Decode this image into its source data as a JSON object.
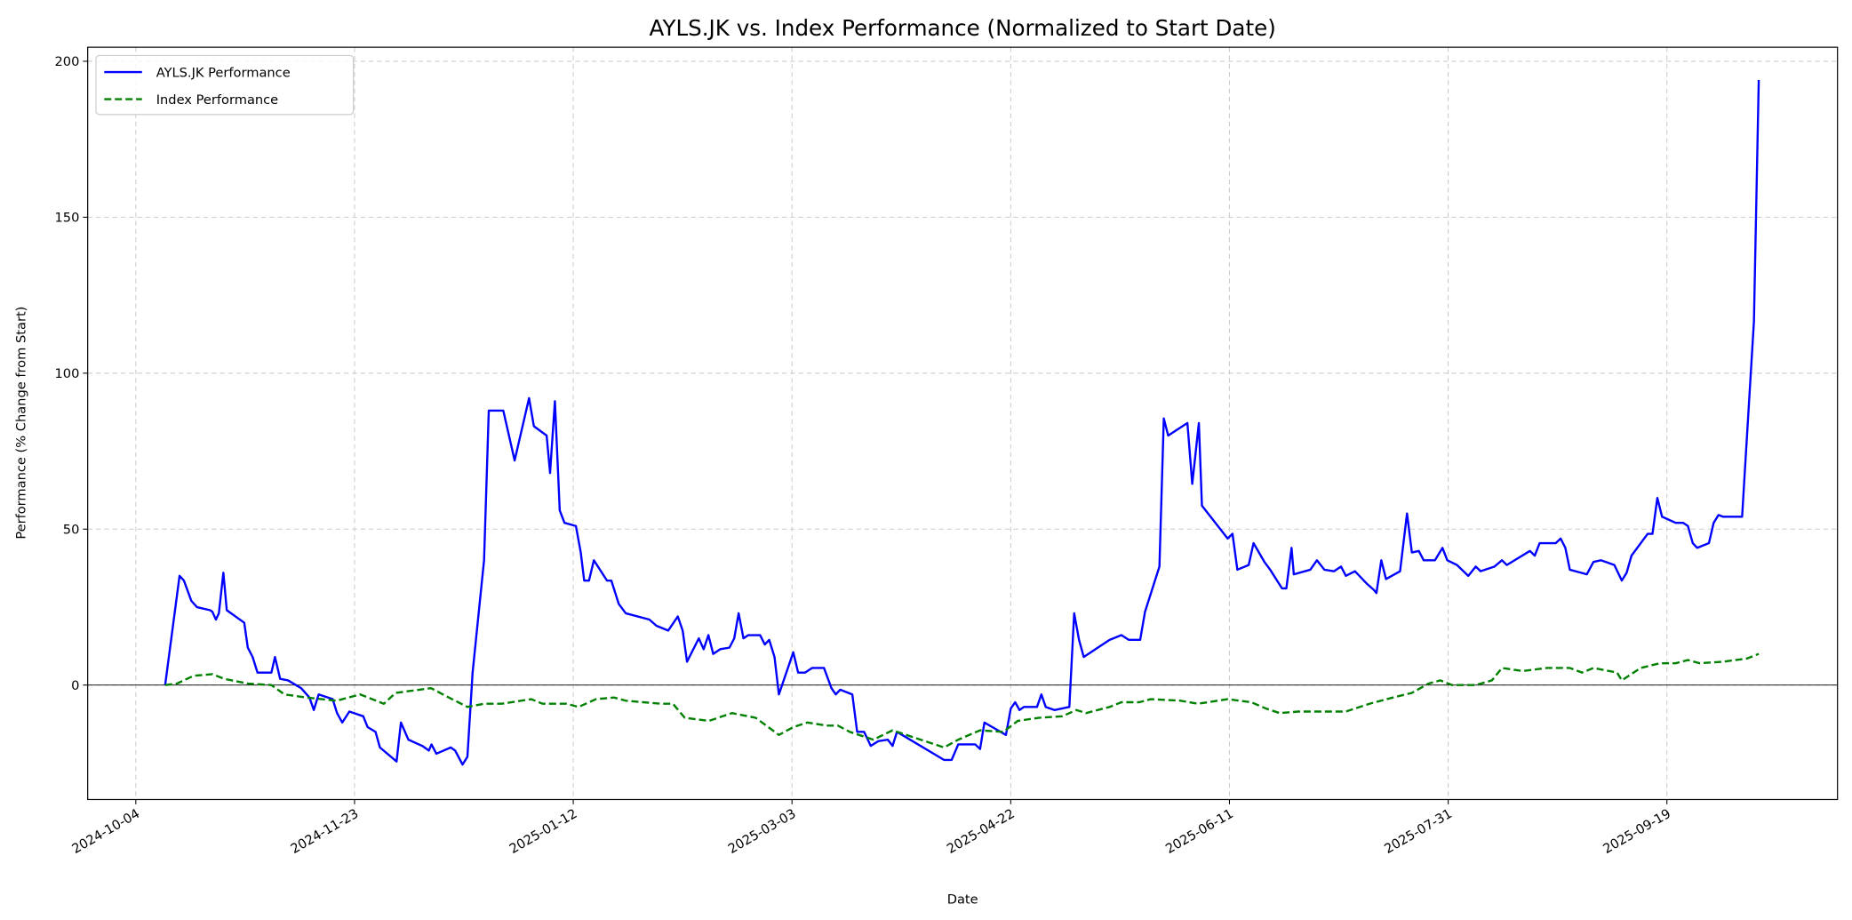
{
  "chart_data": {
    "type": "line",
    "title": "AYLS.JK vs. Index Performance (Normalized to Start Date)",
    "xlabel": "Date",
    "ylabel": "Performance (% Change from Start)",
    "x_unit": "days since 2024-10-04",
    "xlim": [
      -11,
      389
    ],
    "ylim": [
      -36.7,
      204.5
    ],
    "grid": true,
    "legend_position": "top-left",
    "zero_line": 0,
    "x_ticks": [
      {
        "value": 0,
        "label": "2024-10-04"
      },
      {
        "value": 50,
        "label": "2024-11-23"
      },
      {
        "value": 100,
        "label": "2025-01-12"
      },
      {
        "value": 150,
        "label": "2025-03-03"
      },
      {
        "value": 200,
        "label": "2025-04-22"
      },
      {
        "value": 250,
        "label": "2025-06-11"
      },
      {
        "value": 300,
        "label": "2025-07-31"
      },
      {
        "value": 350,
        "label": "2025-09-19"
      }
    ],
    "y_ticks": [
      {
        "value": 0,
        "label": "0"
      },
      {
        "value": 50,
        "label": "50"
      },
      {
        "value": 100,
        "label": "100"
      },
      {
        "value": 150,
        "label": "150"
      },
      {
        "value": 200,
        "label": "200"
      }
    ],
    "series": [
      {
        "name": "AYLS.JK Performance",
        "color": "#0000ff",
        "style": "solid",
        "points": [
          [
            6.7,
            0
          ],
          [
            10,
            35
          ],
          [
            11,
            33.5
          ],
          [
            12.7,
            27
          ],
          [
            14,
            25
          ],
          [
            17,
            24
          ],
          [
            17.5,
            23.5
          ],
          [
            18.3,
            21
          ],
          [
            19,
            23
          ],
          [
            20,
            36
          ],
          [
            20.8,
            24
          ],
          [
            24.8,
            20
          ],
          [
            25.6,
            12
          ],
          [
            26.7,
            9
          ],
          [
            27.8,
            4
          ],
          [
            31,
            4
          ],
          [
            31.8,
            9
          ],
          [
            33,
            2
          ],
          [
            34.8,
            1.5
          ],
          [
            37.8,
            -1
          ],
          [
            39.7,
            -4
          ],
          [
            40.7,
            -8
          ],
          [
            41.8,
            -3
          ],
          [
            45,
            -4.5
          ],
          [
            46,
            -9
          ],
          [
            47.2,
            -12
          ],
          [
            48.8,
            -8.5
          ],
          [
            52,
            -10
          ],
          [
            53,
            -13.5
          ],
          [
            54.8,
            -15
          ],
          [
            55.8,
            -20
          ],
          [
            59.6,
            -24.5
          ],
          [
            60.6,
            -12
          ],
          [
            62.3,
            -17.5
          ],
          [
            65.5,
            -19.5
          ],
          [
            67,
            -21
          ],
          [
            67.6,
            -19
          ],
          [
            68.7,
            -22
          ],
          [
            72,
            -20
          ],
          [
            73,
            -21
          ],
          [
            74.7,
            -25.5
          ],
          [
            75.8,
            -23
          ],
          [
            77,
            4
          ],
          [
            79.6,
            40
          ],
          [
            80.7,
            88
          ],
          [
            84,
            88
          ],
          [
            86.6,
            72
          ],
          [
            89.9,
            92
          ],
          [
            91,
            83
          ],
          [
            93.9,
            80
          ],
          [
            94.7,
            68
          ],
          [
            95.8,
            91
          ],
          [
            96.9,
            56
          ],
          [
            98,
            52
          ],
          [
            100.6,
            51
          ],
          [
            101.7,
            42.5
          ],
          [
            102.5,
            33.5
          ],
          [
            103.6,
            33.5
          ],
          [
            104.7,
            40
          ],
          [
            107.7,
            33.5
          ],
          [
            108.7,
            33.5
          ],
          [
            110.4,
            26
          ],
          [
            112,
            23
          ],
          [
            117.4,
            21
          ],
          [
            119,
            19
          ],
          [
            121.7,
            17.5
          ],
          [
            123.9,
            22
          ],
          [
            125,
            17.5
          ],
          [
            126,
            7.5
          ],
          [
            128.7,
            15
          ],
          [
            129.8,
            11.5
          ],
          [
            130.9,
            16
          ],
          [
            132,
            10
          ],
          [
            133.6,
            11.5
          ],
          [
            135.7,
            12
          ],
          [
            136.8,
            15
          ],
          [
            137.8,
            23
          ],
          [
            138.9,
            15
          ],
          [
            140,
            16
          ],
          [
            142.7,
            16
          ],
          [
            143.8,
            13
          ],
          [
            144.8,
            14.5
          ],
          [
            146,
            9
          ],
          [
            147,
            -3
          ],
          [
            150.3,
            10.5
          ],
          [
            151.4,
            4
          ],
          [
            153,
            4
          ],
          [
            154.6,
            5.5
          ],
          [
            157.3,
            5.5
          ],
          [
            159,
            -1
          ],
          [
            160,
            -3
          ],
          [
            161,
            -1.5
          ],
          [
            163.8,
            -3
          ],
          [
            164.9,
            -15
          ],
          [
            166.5,
            -15
          ],
          [
            168,
            -19.5
          ],
          [
            169.7,
            -18
          ],
          [
            171.9,
            -17.5
          ],
          [
            173,
            -19.5
          ],
          [
            174,
            -15
          ],
          [
            184.8,
            -24
          ],
          [
            186.5,
            -24
          ],
          [
            188,
            -19
          ],
          [
            191.9,
            -19
          ],
          [
            193,
            -20.5
          ],
          [
            194,
            -12
          ],
          [
            198.9,
            -16
          ],
          [
            200,
            -7.5
          ],
          [
            201,
            -5.5
          ],
          [
            202,
            -8
          ],
          [
            203,
            -7
          ],
          [
            206,
            -7
          ],
          [
            207,
            -3
          ],
          [
            208,
            -7
          ],
          [
            210,
            -8
          ],
          [
            213.4,
            -7
          ],
          [
            214.5,
            23
          ],
          [
            215.6,
            14.5
          ],
          [
            216.7,
            9
          ],
          [
            221,
            13
          ],
          [
            222.6,
            14.5
          ],
          [
            225.3,
            16
          ],
          [
            227,
            14.5
          ],
          [
            229.6,
            14.5
          ],
          [
            230.7,
            23.5
          ],
          [
            234,
            38
          ],
          [
            235,
            85.5
          ],
          [
            236,
            80
          ],
          [
            240.4,
            84
          ],
          [
            241.5,
            64.5
          ],
          [
            243,
            84
          ],
          [
            243.7,
            57.5
          ],
          [
            249.6,
            47
          ],
          [
            250.7,
            48.5
          ],
          [
            251.8,
            37
          ],
          [
            254.4,
            38.5
          ],
          [
            255.5,
            45.5
          ],
          [
            258,
            39.5
          ],
          [
            259.3,
            37
          ],
          [
            262,
            31
          ],
          [
            263,
            31
          ],
          [
            264.2,
            44
          ],
          [
            264.7,
            35.5
          ],
          [
            268.5,
            37
          ],
          [
            270,
            40
          ],
          [
            271.7,
            37
          ],
          [
            273.9,
            36.5
          ],
          [
            275.5,
            38
          ],
          [
            276.6,
            35
          ],
          [
            278.7,
            36.5
          ],
          [
            281.4,
            32.5
          ],
          [
            283,
            30.5
          ],
          [
            283.6,
            29.5
          ],
          [
            284.7,
            40
          ],
          [
            285.8,
            34
          ],
          [
            289,
            36.5
          ],
          [
            290.6,
            55
          ],
          [
            291.7,
            42.5
          ],
          [
            293.3,
            43
          ],
          [
            294.4,
            40
          ],
          [
            297,
            40
          ],
          [
            298.7,
            44
          ],
          [
            299.8,
            40
          ],
          [
            302,
            38.5
          ],
          [
            304.6,
            35
          ],
          [
            306.3,
            38
          ],
          [
            307.4,
            36.5
          ],
          [
            310.6,
            38
          ],
          [
            312.3,
            40
          ],
          [
            313.4,
            38.5
          ],
          [
            318.7,
            43
          ],
          [
            319.8,
            41.5
          ],
          [
            320.9,
            45.5
          ],
          [
            324.6,
            45.5
          ],
          [
            325.7,
            47
          ],
          [
            326.8,
            44
          ],
          [
            327.8,
            37
          ],
          [
            331.7,
            35.5
          ],
          [
            333.2,
            39.5
          ],
          [
            334.9,
            40
          ],
          [
            338,
            38.5
          ],
          [
            339.7,
            33.5
          ],
          [
            340.8,
            36
          ],
          [
            341.9,
            41.5
          ],
          [
            345.6,
            48.5
          ],
          [
            346.7,
            48.5
          ],
          [
            347.8,
            60
          ],
          [
            348.9,
            54
          ],
          [
            352,
            52
          ],
          [
            353.7,
            52
          ],
          [
            354.8,
            51
          ],
          [
            355.9,
            45.5
          ],
          [
            356.9,
            44
          ],
          [
            359.6,
            45.5
          ],
          [
            360.7,
            52
          ],
          [
            361.8,
            54.5
          ],
          [
            362.8,
            54
          ],
          [
            367.2,
            54
          ],
          [
            367.7,
            66
          ],
          [
            369.9,
            116.5
          ],
          [
            371,
            194
          ]
        ]
      },
      {
        "name": "Index Performance",
        "color": "#008000",
        "style": "dashed",
        "points": [
          [
            6.7,
            0
          ],
          [
            9.4,
            0.5
          ],
          [
            13.2,
            3
          ],
          [
            17.5,
            3.5
          ],
          [
            20.2,
            2
          ],
          [
            25.6,
            0.5
          ],
          [
            31,
            0
          ],
          [
            34,
            -3
          ],
          [
            39,
            -4
          ],
          [
            45.9,
            -5
          ],
          [
            51.3,
            -3
          ],
          [
            56.7,
            -6
          ],
          [
            59.4,
            -2.5
          ],
          [
            67.5,
            -1
          ],
          [
            70.2,
            -3
          ],
          [
            75.8,
            -7
          ],
          [
            79.6,
            -6
          ],
          [
            83.6,
            -6
          ],
          [
            90.4,
            -4.5
          ],
          [
            93,
            -6
          ],
          [
            98.5,
            -6
          ],
          [
            101.2,
            -7
          ],
          [
            105.2,
            -4.5
          ],
          [
            109.3,
            -4
          ],
          [
            112,
            -5
          ],
          [
            120,
            -6
          ],
          [
            122.8,
            -6
          ],
          [
            125.5,
            -10.5
          ],
          [
            131,
            -11.5
          ],
          [
            136.3,
            -9
          ],
          [
            141.7,
            -10.5
          ],
          [
            147,
            -16
          ],
          [
            150.3,
            -13.5
          ],
          [
            153.5,
            -12
          ],
          [
            157.9,
            -13
          ],
          [
            160.5,
            -13
          ],
          [
            163.2,
            -15
          ],
          [
            168.6,
            -17.5
          ],
          [
            173,
            -14.5
          ],
          [
            179.4,
            -17.5
          ],
          [
            184.8,
            -20
          ],
          [
            188,
            -17.5
          ],
          [
            193,
            -14.5
          ],
          [
            198.3,
            -15
          ],
          [
            201.6,
            -11.5
          ],
          [
            206.4,
            -10.5
          ],
          [
            211.8,
            -10
          ],
          [
            215,
            -8
          ],
          [
            217.2,
            -9
          ],
          [
            222.6,
            -7
          ],
          [
            225.3,
            -5.5
          ],
          [
            229.4,
            -5.5
          ],
          [
            232,
            -4.5
          ],
          [
            238.8,
            -5
          ],
          [
            242.8,
            -6
          ],
          [
            249.6,
            -4.5
          ],
          [
            255,
            -5.5
          ],
          [
            258.3,
            -7.5
          ],
          [
            261.5,
            -9
          ],
          [
            265.8,
            -8.5
          ],
          [
            271.2,
            -8.5
          ],
          [
            276.6,
            -8.5
          ],
          [
            282,
            -6
          ],
          [
            287.4,
            -4
          ],
          [
            291.7,
            -2.5
          ],
          [
            295.5,
            0.5
          ],
          [
            298.2,
            1.5
          ],
          [
            300.9,
            0
          ],
          [
            306.3,
            0
          ],
          [
            310,
            1.5
          ],
          [
            312.3,
            5.5
          ],
          [
            317.1,
            4.5
          ],
          [
            322.5,
            5.5
          ],
          [
            327.8,
            5.5
          ],
          [
            330.6,
            4
          ],
          [
            333.2,
            5.5
          ],
          [
            338.6,
            4
          ],
          [
            339.7,
            1.5
          ],
          [
            344,
            5.5
          ],
          [
            348.4,
            7
          ],
          [
            352,
            7
          ],
          [
            354.8,
            8
          ],
          [
            357.5,
            7
          ],
          [
            362.8,
            7.5
          ],
          [
            368.3,
            8.5
          ],
          [
            371,
            10
          ]
        ]
      }
    ]
  }
}
